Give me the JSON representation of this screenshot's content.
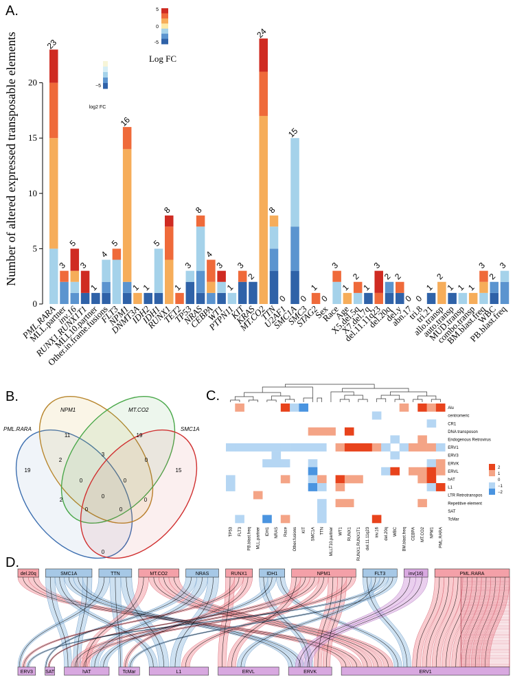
{
  "panels": {
    "a": "A.",
    "b": "B.",
    "c": "C.",
    "d": "D."
  },
  "colors": {
    "c1": "#2f62a8",
    "c2": "#5b94cf",
    "c3": "#a5d2ea",
    "c4": "#f6ad5a",
    "c5": "#ef6a3a",
    "c6": "#cf2b22",
    "venn_blue": "#3d6fb0",
    "venn_gold": "#b8862d",
    "venn_green": "#4aa84a",
    "venn_red": "#d03030",
    "hm_pos2": "#e8431c",
    "hm_pos1": "#f4a486",
    "hm_neg1": "#b5d6f3",
    "hm_neg2": "#4a94e0",
    "sk_red": "#f4a0a8",
    "sk_blue": "#a6c8e6",
    "sk_purple": "#d8a8e0"
  },
  "chart_data": [
    {
      "type": "bar",
      "title": "",
      "ylabel": "Number of altered expressed transposable elements",
      "ylim": [
        0,
        25
      ],
      "yticks": [
        "0",
        "5",
        "10",
        "15",
        "20"
      ],
      "legend_top": {
        "title": "Log FC",
        "ticks": [
          "5",
          "0",
          "-5"
        ]
      },
      "legend_small": {
        "title": "log2 FC",
        "ticks": [
          "−5"
        ]
      },
      "bars": [
        {
          "label": "PML.RARA",
          "total": 23,
          "segs": [
            0,
            0,
            5,
            10,
            5,
            3
          ],
          "italic": true
        },
        {
          "label": "MLL.partner",
          "total": 3,
          "segs": [
            0,
            2,
            0,
            0,
            1,
            0
          ],
          "italic": false
        },
        {
          "label": "inv.16",
          "total": 5,
          "segs": [
            0,
            1,
            1,
            1,
            0,
            2
          ],
          "italic": true
        },
        {
          "label": "RUNX1.RUNX1T1",
          "total": 3,
          "segs": [
            1,
            0,
            0,
            0,
            0,
            2
          ],
          "italic": true
        },
        {
          "label": "MLL10.partner",
          "total": 1,
          "segs": [
            1,
            0,
            0,
            0,
            0,
            0
          ],
          "italic": false
        },
        {
          "label": "Other.in.frame.fusions",
          "total": 4,
          "segs": [
            1,
            1,
            2,
            0,
            0,
            0
          ],
          "italic": false
        },
        {
          "label": "FLT3",
          "total": 5,
          "segs": [
            0,
            0,
            4,
            0,
            1,
            0
          ],
          "italic": true
        },
        {
          "label": "NPM1",
          "total": 16,
          "segs": [
            1,
            1,
            0,
            12,
            2,
            0
          ],
          "italic": true
        },
        {
          "label": "DNMT3A",
          "total": 1,
          "segs": [
            0,
            0,
            0,
            1,
            0,
            0
          ],
          "italic": true
        },
        {
          "label": "IDH2",
          "total": 1,
          "segs": [
            1,
            0,
            0,
            0,
            0,
            0
          ],
          "italic": true
        },
        {
          "label": "IDH1",
          "total": 5,
          "segs": [
            1,
            0,
            4,
            0,
            0,
            0
          ],
          "italic": true
        },
        {
          "label": "RUNX1",
          "total": 8,
          "segs": [
            0,
            0,
            0,
            4,
            3,
            1
          ],
          "italic": true
        },
        {
          "label": "TET2",
          "total": 1,
          "segs": [
            0,
            0,
            0,
            0,
            1,
            0
          ],
          "italic": true
        },
        {
          "label": "TP53",
          "total": 3,
          "segs": [
            2,
            0,
            1,
            0,
            0,
            0
          ],
          "italic": true
        },
        {
          "label": "NRAS",
          "total": 8,
          "segs": [
            1,
            2,
            4,
            0,
            1,
            0
          ],
          "italic": true
        },
        {
          "label": "CEBPA",
          "total": 4,
          "segs": [
            0,
            1,
            0,
            1,
            2,
            0
          ],
          "italic": true
        },
        {
          "label": "WT1",
          "total": 3,
          "segs": [
            1,
            0,
            1,
            0,
            0,
            1
          ],
          "italic": true
        },
        {
          "label": "PTPN11",
          "total": 1,
          "segs": [
            0,
            0,
            1,
            0,
            0,
            0
          ],
          "italic": true
        },
        {
          "label": "KIT",
          "total": 3,
          "segs": [
            2,
            0,
            0,
            0,
            1,
            0
          ],
          "italic": true
        },
        {
          "label": "KRAS",
          "total": 2,
          "segs": [
            2,
            0,
            0,
            0,
            0,
            0
          ],
          "italic": true
        },
        {
          "label": "MT.CO2",
          "total": 24,
          "segs": [
            0,
            0,
            0,
            17,
            4,
            3
          ],
          "italic": true
        },
        {
          "label": "TTN",
          "total": 8,
          "segs": [
            3,
            2,
            2,
            1,
            0,
            0
          ],
          "italic": true
        },
        {
          "label": "U2AF1",
          "total": 0,
          "segs": [
            0,
            0,
            0,
            0,
            0,
            0
          ],
          "italic": true
        },
        {
          "label": "SMC1A",
          "total": 15,
          "segs": [
            3,
            4,
            8,
            0,
            0,
            0
          ],
          "italic": true
        },
        {
          "label": "SMC3",
          "total": 0,
          "segs": [
            0,
            0,
            0,
            0,
            0,
            0
          ],
          "italic": true
        },
        {
          "label": "STAG2",
          "total": 1,
          "segs": [
            0,
            0,
            0,
            0,
            1,
            0
          ],
          "italic": true
        },
        {
          "label": "Sex",
          "total": 0,
          "segs": [
            0,
            0,
            0,
            0,
            0,
            0
          ],
          "italic": false
        },
        {
          "label": "Race",
          "total": 3,
          "segs": [
            0,
            0,
            2,
            0,
            1,
            0
          ],
          "italic": false
        },
        {
          "label": "Age",
          "total": 1,
          "segs": [
            0,
            0,
            0,
            1,
            0,
            0
          ],
          "italic": false
        },
        {
          "label": "X5.del.5q",
          "total": 2,
          "segs": [
            0,
            0,
            1,
            0,
            1,
            0
          ],
          "italic": false
        },
        {
          "label": "X7.del.7q",
          "total": 1,
          "segs": [
            1,
            0,
            0,
            0,
            0,
            0
          ],
          "italic": false
        },
        {
          "label": "del.11.11q23",
          "total": 3,
          "segs": [
            0,
            0,
            0,
            0,
            1,
            2
          ],
          "italic": false
        },
        {
          "label": "del.20q",
          "total": 2,
          "segs": [
            1,
            1,
            0,
            0,
            0,
            0
          ],
          "italic": false
        },
        {
          "label": "del.y",
          "total": 2,
          "segs": [
            1,
            0,
            0,
            0,
            1,
            0
          ],
          "italic": false
        },
        {
          "label": "abn.17",
          "total": 0,
          "segs": [
            0,
            0,
            0,
            0,
            0,
            0
          ],
          "italic": false
        },
        {
          "label": "tri.8",
          "total": 0,
          "segs": [
            0,
            0,
            0,
            0,
            0,
            0
          ],
          "italic": false
        },
        {
          "label": "tri.21",
          "total": 1,
          "segs": [
            1,
            0,
            0,
            0,
            0,
            0
          ],
          "italic": false
        },
        {
          "label": "allo.transp",
          "total": 2,
          "segs": [
            0,
            0,
            0,
            2,
            0,
            0
          ],
          "italic": false
        },
        {
          "label": "auto.transp",
          "total": 1,
          "segs": [
            1,
            0,
            0,
            0,
            0,
            0
          ],
          "italic": false
        },
        {
          "label": "MUD.transp",
          "total": 1,
          "segs": [
            0,
            0,
            1,
            0,
            0,
            0
          ],
          "italic": false
        },
        {
          "label": "combo.transp",
          "total": 1,
          "segs": [
            0,
            0,
            0,
            1,
            0,
            0
          ],
          "italic": false
        },
        {
          "label": "BM.blast.freq",
          "total": 3,
          "segs": [
            0,
            0,
            1,
            1,
            1,
            0
          ],
          "italic": false
        },
        {
          "label": "WBC",
          "total": 2,
          "segs": [
            1,
            1,
            0,
            0,
            0,
            0
          ],
          "italic": false
        },
        {
          "label": "PB.blast.freq",
          "total": 3,
          "segs": [
            0,
            2,
            1,
            0,
            0,
            0
          ],
          "italic": false
        }
      ]
    },
    {
      "type": "venn",
      "sets": [
        "PML.RARA",
        "NPM1",
        "MT.CO2",
        "SMC1A"
      ],
      "counts": {
        "pml_only": "19",
        "npm1_only": "11",
        "mtco2_only": "19",
        "smc1a_only": "15",
        "pml_npm1": "2",
        "npm1_mtco2": "3",
        "mtco2_smc1a": "0",
        "pml_mtco2": "2",
        "npm1_smc1a": "0",
        "pml_smc1a": "0",
        "pml_npm1_mtco2": "0",
        "npm1_mtco2_smc1a": "0",
        "pml_mtco2_smc1a": "0",
        "pml_npm1_smc1a": "0",
        "all": "0"
      }
    },
    {
      "type": "heatmap",
      "rows": [
        "Alu",
        "centromeric",
        "CR1",
        "DNA transposon",
        "Endogenous Retrovirus",
        "ERV1",
        "ERV3",
        "ERVK",
        "ERVL",
        "hAT",
        "L1",
        "LTR Retrotranspos",
        "Repetitive element",
        "SAT",
        "TcMar"
      ],
      "cols": [
        "TP53",
        "FLT3",
        "PB.blast.freq",
        "MLL.partner",
        "IDH1",
        "NRAS",
        "Race",
        "Other.fusions",
        "KIT",
        "SMC1A",
        "TTN",
        "MLLT10.partner",
        "WT1",
        "RUNX1",
        "RUNX1.RUNX1T1",
        "del.11.11q23",
        "inv.16",
        "del.20q",
        "WBC",
        "BM.blast.freq",
        "CEBPA",
        "MT.CO2",
        "NPM1",
        "PML.RARA"
      ],
      "legend": [
        "2",
        "1",
        "0",
        "−1",
        "−2"
      ],
      "values": [
        [
          0,
          1,
          0,
          0,
          0,
          0,
          2,
          -1,
          -2,
          0,
          0,
          0,
          0,
          0,
          0,
          0,
          0,
          0,
          0,
          1,
          0,
          2,
          1,
          2
        ],
        [
          0,
          0,
          0,
          0,
          0,
          0,
          0,
          0,
          0,
          0,
          0,
          0,
          0,
          0,
          0,
          0,
          -1,
          0,
          0,
          0,
          0,
          0,
          0,
          0
        ],
        [
          0,
          0,
          0,
          0,
          0,
          0,
          0,
          0,
          0,
          0,
          0,
          0,
          0,
          0,
          0,
          0,
          0,
          0,
          0,
          0,
          0,
          0,
          -1,
          0
        ],
        [
          0,
          0,
          0,
          0,
          0,
          0,
          0,
          0,
          0,
          1,
          1,
          1,
          0,
          2,
          0,
          0,
          0,
          0,
          0,
          0,
          0,
          0,
          0,
          0
        ],
        [
          0,
          0,
          0,
          0,
          0,
          0,
          0,
          0,
          0,
          0,
          0,
          0,
          0,
          0,
          0,
          0,
          0,
          0,
          -1,
          0,
          0,
          1,
          0,
          0
        ],
        [
          -1,
          -1,
          -1,
          -1,
          -1,
          -1,
          -1,
          -1,
          -1,
          -1,
          -1,
          0,
          1,
          2,
          2,
          2,
          1,
          -1,
          0,
          -1,
          1,
          1,
          1,
          -1
        ],
        [
          0,
          0,
          0,
          0,
          0,
          -1,
          0,
          0,
          0,
          0,
          0,
          0,
          0,
          0,
          0,
          0,
          0,
          0,
          -1,
          0,
          0,
          0,
          0,
          0
        ],
        [
          0,
          0,
          0,
          0,
          -1,
          -1,
          -1,
          0,
          0,
          -1,
          0,
          0,
          0,
          0,
          0,
          0,
          0,
          0,
          0,
          0,
          0,
          0,
          -1,
          1
        ],
        [
          0,
          0,
          0,
          0,
          0,
          0,
          0,
          0,
          0,
          -2,
          0,
          0,
          0,
          0,
          0,
          0,
          0,
          -1,
          2,
          0,
          1,
          1,
          2,
          1
        ],
        [
          -1,
          0,
          0,
          0,
          0,
          0,
          1,
          0,
          0,
          -1,
          1,
          0,
          2,
          1,
          1,
          0,
          0,
          0,
          0,
          0,
          0,
          1,
          2,
          0
        ],
        [
          -1,
          0,
          0,
          0,
          0,
          0,
          0,
          0,
          0,
          -2,
          -1,
          0,
          1,
          0,
          0,
          0,
          0,
          0,
          0,
          0,
          0,
          0,
          -1,
          2
        ],
        [
          0,
          0,
          0,
          1,
          0,
          0,
          0,
          0,
          0,
          0,
          0,
          0,
          0,
          0,
          0,
          0,
          0,
          0,
          0,
          0,
          0,
          0,
          0,
          0
        ],
        [
          0,
          0,
          0,
          0,
          0,
          0,
          0,
          0,
          0,
          0,
          -1,
          0,
          1,
          1,
          0,
          0,
          0,
          0,
          0,
          0,
          0,
          1,
          0,
          0
        ],
        [
          0,
          0,
          0,
          0,
          0,
          0,
          0,
          0,
          0,
          0,
          -1,
          0,
          0,
          0,
          0,
          0,
          0,
          0,
          0,
          0,
          0,
          0,
          0,
          0
        ],
        [
          0,
          -1,
          0,
          0,
          -2,
          0,
          1,
          0,
          0,
          0,
          -1,
          0,
          0,
          0,
          0,
          0,
          2,
          0,
          0,
          0,
          0,
          0,
          0,
          0
        ]
      ]
    },
    {
      "type": "sankey",
      "top": [
        {
          "label": "del.20q",
          "color": "red",
          "w": 28
        },
        {
          "label": "SMC1A",
          "color": "blue",
          "w": 62
        },
        {
          "label": "TTN",
          "color": "blue",
          "w": 44
        },
        {
          "label": "MT.CO2",
          "color": "red",
          "w": 54
        },
        {
          "label": "NRAS",
          "color": "blue",
          "w": 44
        },
        {
          "label": "RUNX1",
          "color": "red",
          "w": 36
        },
        {
          "label": "IDH1",
          "color": "blue",
          "w": 34
        },
        {
          "label": "NPM1",
          "color": "red",
          "w": 86
        },
        {
          "label": "FLT3",
          "color": "blue",
          "w": 46
        },
        {
          "label": "inv(16)",
          "color": "purple",
          "w": 32
        },
        {
          "label": "PML.RARA",
          "color": "red",
          "w": 100
        }
      ],
      "bottom": [
        {
          "label": "ERV3",
          "w": 22
        },
        {
          "label": "SAT",
          "w": 12
        },
        {
          "label": "hAT",
          "w": 56
        },
        {
          "label": "TcMar",
          "w": 26
        },
        {
          "label": "L1",
          "w": 74
        },
        {
          "label": "ERVL",
          "w": 76
        },
        {
          "label": "ERVK",
          "w": 54
        },
        {
          "label": "ERV1",
          "w": 210
        }
      ]
    }
  ]
}
